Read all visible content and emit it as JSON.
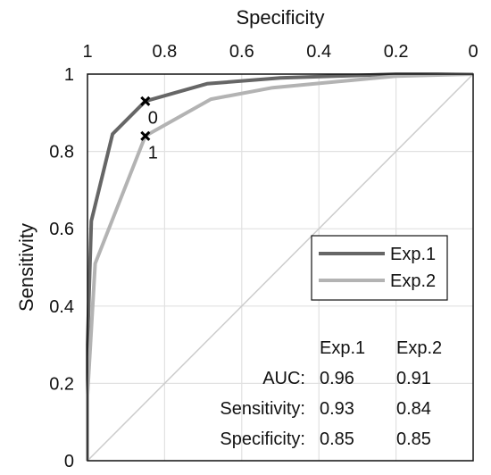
{
  "chart_data": {
    "type": "line",
    "xlabel": "Specificity",
    "ylabel": "Sensitivity",
    "xlim": [
      1,
      0
    ],
    "ylim": [
      0,
      1
    ],
    "x_axis_position": "top",
    "x_reversed": true,
    "x_ticks": [
      1,
      0.8,
      0.6,
      0.4,
      0.2,
      0
    ],
    "x_tick_labels": [
      "1",
      "0.8",
      "0.6",
      "0.4",
      "0.2",
      "0"
    ],
    "y_ticks": [
      0,
      0.2,
      0.4,
      0.6,
      0.8,
      1
    ],
    "y_tick_labels": [
      "0",
      "0.2",
      "0.4",
      "0.6",
      "0.8",
      "1"
    ],
    "grid": true,
    "diagonal_reference": true,
    "colors": {
      "exp1": "#666666",
      "exp2": "#b3b3b3",
      "grid": "#e1e1e1",
      "diagonal": "#cccccc"
    },
    "series": [
      {
        "name": "Exp.1",
        "x": [
          1.0,
          1.0,
          0.99,
          0.935,
          0.85,
          0.69,
          0.5,
          0.2,
          0.0
        ],
        "y": [
          0.0,
          0.3,
          0.62,
          0.845,
          0.93,
          0.975,
          0.99,
          1.0,
          1.0
        ]
      },
      {
        "name": "Exp.2",
        "x": [
          1.0,
          1.0,
          0.98,
          0.85,
          0.68,
          0.52,
          0.2,
          0.0
        ],
        "y": [
          0.0,
          0.17,
          0.51,
          0.84,
          0.935,
          0.965,
          0.995,
          1.0
        ]
      }
    ],
    "markers": [
      {
        "label": "0",
        "x": 0.85,
        "y": 0.93,
        "series": "Exp.1"
      },
      {
        "label": "1",
        "x": 0.85,
        "y": 0.84,
        "series": "Exp.2"
      }
    ],
    "legend": {
      "position": "middle-right",
      "entries": [
        "Exp.1",
        "Exp.2"
      ]
    },
    "stats_table": {
      "columns": [
        "Exp.1",
        "Exp.2"
      ],
      "rows": [
        {
          "label": "AUC:",
          "values": [
            "0.96",
            "0.91"
          ]
        },
        {
          "label": "Sensitivity:",
          "values": [
            "0.93",
            "0.84"
          ]
        },
        {
          "label": "Specificity:",
          "values": [
            "0.85",
            "0.85"
          ]
        }
      ]
    }
  }
}
